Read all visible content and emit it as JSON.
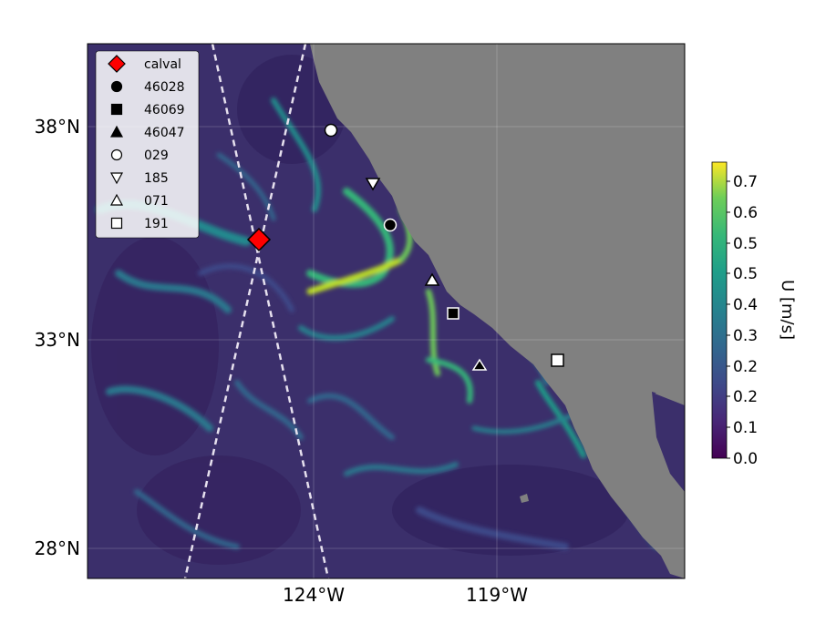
{
  "map": {
    "lat_ticks": [
      "38°N",
      "33°N",
      "28°N"
    ],
    "lon_ticks": [
      "124°W",
      "119°W"
    ],
    "land_color": "#808080",
    "ocean_base_color": "#3b2f6b"
  },
  "legend": {
    "items": [
      {
        "label": "calval",
        "marker": "diamond",
        "fill": "#ff0000"
      },
      {
        "label": "46028",
        "marker": "circle",
        "fill": "#000000"
      },
      {
        "label": "46069",
        "marker": "square",
        "fill": "#000000"
      },
      {
        "label": "46047",
        "marker": "triangle-up",
        "fill": "#000000"
      },
      {
        "label": "029",
        "marker": "circle",
        "fill": "#ffffff"
      },
      {
        "label": "185",
        "marker": "triangle-down",
        "fill": "#ffffff"
      },
      {
        "label": "071",
        "marker": "triangle-up",
        "fill": "#ffffff"
      },
      {
        "label": "191",
        "marker": "square",
        "fill": "#ffffff"
      }
    ]
  },
  "colorbar": {
    "label": "U [m/s]",
    "ticks": [
      "0.0",
      "0.1",
      "0.2",
      "0.2",
      "0.3",
      "0.4",
      "0.5",
      "0.5",
      "0.6",
      "0.7"
    ],
    "colormap": "viridis",
    "range": [
      0.0,
      0.75
    ]
  }
}
